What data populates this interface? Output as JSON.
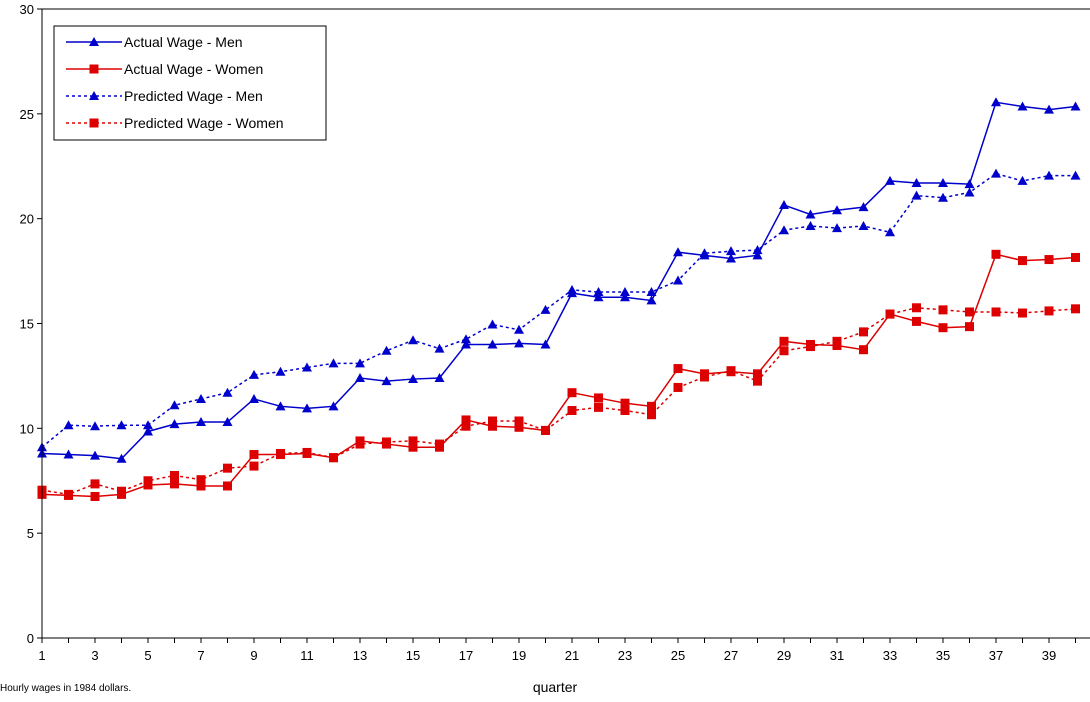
{
  "chart_data": {
    "type": "line",
    "title": "",
    "xlabel": "quarter",
    "ylabel": "",
    "footnote": "Hourly wages in 1984 dollars.",
    "ylim": [
      0,
      30
    ],
    "yticks": [
      0,
      5,
      10,
      15,
      20,
      25,
      30
    ],
    "xlim": [
      1,
      40
    ],
    "xtick_labels": [
      "1",
      "3",
      "5",
      "7",
      "9",
      "11",
      "13",
      "15",
      "17",
      "19",
      "21",
      "23",
      "25",
      "27",
      "29",
      "31",
      "33",
      "35",
      "37",
      "39"
    ],
    "x": [
      1,
      2,
      3,
      4,
      5,
      6,
      7,
      8,
      9,
      10,
      11,
      12,
      13,
      14,
      15,
      16,
      17,
      18,
      19,
      20,
      21,
      22,
      23,
      24,
      25,
      26,
      27,
      28,
      29,
      30,
      31,
      32,
      33,
      34,
      35,
      36,
      37,
      38,
      39,
      40
    ],
    "grid": false,
    "legend_position": "top-left",
    "series": [
      {
        "name": "Actual Wage - Men",
        "color": "#0000cc",
        "line_style": "solid",
        "marker": "triangle",
        "values": [
          8.8,
          8.75,
          8.7,
          8.55,
          9.85,
          10.2,
          10.3,
          10.3,
          11.4,
          11.05,
          10.95,
          11.05,
          12.4,
          12.25,
          12.35,
          12.4,
          14.0,
          14.0,
          14.05,
          14.0,
          16.45,
          16.25,
          16.25,
          16.1,
          18.4,
          18.25,
          18.1,
          18.25,
          20.65,
          20.2,
          20.4,
          20.55,
          21.8,
          21.7,
          21.7,
          21.65,
          25.55,
          25.35,
          25.2,
          25.35
        ]
      },
      {
        "name": "Actual Wage - Women",
        "color": "#dd0000",
        "line_style": "solid",
        "marker": "square",
        "values": [
          6.85,
          6.8,
          6.75,
          6.85,
          7.3,
          7.35,
          7.25,
          7.25,
          8.75,
          8.75,
          8.8,
          8.6,
          9.4,
          9.25,
          9.1,
          9.1,
          10.4,
          10.1,
          10.05,
          9.9,
          11.7,
          11.45,
          11.2,
          11.05,
          12.85,
          12.6,
          12.7,
          12.6,
          14.15,
          14.0,
          13.95,
          13.75,
          15.45,
          15.1,
          14.8,
          14.85,
          18.3,
          18.0,
          18.05,
          18.15
        ]
      },
      {
        "name": "Predicted Wage - Men",
        "color": "#0000cc",
        "line_style": "dotted",
        "marker": "triangle",
        "values": [
          9.1,
          10.15,
          10.1,
          10.15,
          10.15,
          11.1,
          11.4,
          11.7,
          12.55,
          12.7,
          12.9,
          13.1,
          13.1,
          13.7,
          14.2,
          13.8,
          14.25,
          14.95,
          14.7,
          15.65,
          16.6,
          16.5,
          16.5,
          16.5,
          17.05,
          18.35,
          18.45,
          18.5,
          19.45,
          19.65,
          19.55,
          19.65,
          19.35,
          21.1,
          21.0,
          21.25,
          22.15,
          21.8,
          22.05,
          22.05
        ]
      },
      {
        "name": "Predicted Wage - Women",
        "color": "#dd0000",
        "line_style": "dotted",
        "marker": "square",
        "values": [
          7.05,
          6.85,
          7.35,
          7.0,
          7.5,
          7.75,
          7.55,
          8.1,
          8.2,
          8.8,
          8.85,
          8.6,
          9.25,
          9.35,
          9.4,
          9.25,
          10.1,
          10.35,
          10.35,
          9.9,
          10.85,
          11.0,
          10.85,
          10.65,
          11.95,
          12.45,
          12.75,
          12.25,
          13.7,
          13.9,
          14.15,
          14.6,
          15.45,
          15.75,
          15.65,
          15.55,
          15.55,
          15.5,
          15.6,
          15.7
        ]
      }
    ]
  }
}
